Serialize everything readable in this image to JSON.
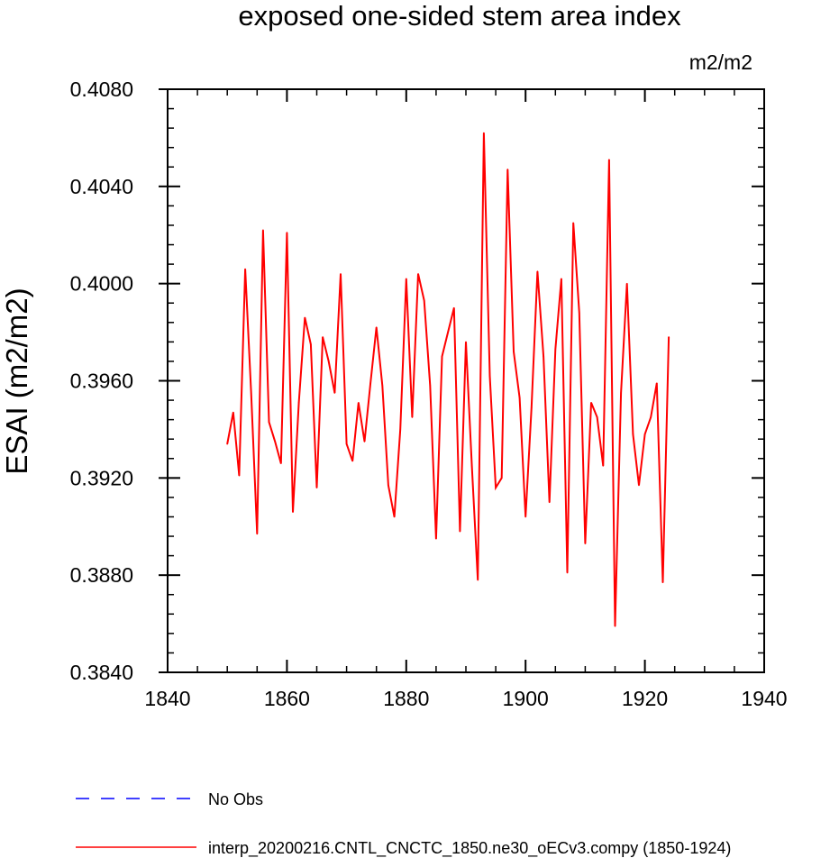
{
  "chart_data": {
    "type": "line",
    "title": "exposed one-sided stem area index",
    "units": "m2/m2",
    "ylabel": "ESAI  (m2/m2)",
    "xlabel": "",
    "xlim": [
      1840,
      1940
    ],
    "ylim": [
      0.384,
      0.408
    ],
    "x_ticks": [
      1840,
      1860,
      1880,
      1900,
      1920,
      1940
    ],
    "x_tick_labels": [
      "1840",
      "1860",
      "1880",
      "1900",
      "1920",
      "1940"
    ],
    "y_ticks": [
      0.384,
      0.388,
      0.392,
      0.396,
      0.4,
      0.404,
      0.408
    ],
    "y_tick_labels": [
      "0.3840",
      "0.3880",
      "0.3920",
      "0.3960",
      "0.4000",
      "0.4040",
      "0.4080"
    ],
    "grid": false,
    "legend_position": "bottom",
    "series": [
      {
        "name": "interp_20200216.CNTL_CNCTC_1850.ne30_oECv3.compy (1850-1924)",
        "color": "#ff0000",
        "style": "solid",
        "x": [
          1850,
          1851,
          1852,
          1853,
          1854,
          1855,
          1856,
          1857,
          1858,
          1859,
          1860,
          1861,
          1862,
          1863,
          1864,
          1865,
          1866,
          1867,
          1868,
          1869,
          1870,
          1871,
          1872,
          1873,
          1874,
          1875,
          1876,
          1877,
          1878,
          1879,
          1880,
          1881,
          1882,
          1883,
          1884,
          1885,
          1886,
          1887,
          1888,
          1889,
          1890,
          1891,
          1892,
          1893,
          1894,
          1895,
          1896,
          1897,
          1898,
          1899,
          1900,
          1901,
          1902,
          1903,
          1904,
          1905,
          1906,
          1907,
          1908,
          1909,
          1910,
          1911,
          1912,
          1913,
          1914,
          1915,
          1916,
          1917,
          1918,
          1919,
          1920,
          1921,
          1922,
          1923,
          1924
        ],
        "values": [
          0.3934,
          0.3947,
          0.3921,
          0.4006,
          0.3955,
          0.3897,
          0.4022,
          0.3943,
          0.3935,
          0.3926,
          0.4021,
          0.3906,
          0.3951,
          0.3986,
          0.3975,
          0.3916,
          0.3978,
          0.3968,
          0.3955,
          0.4004,
          0.3934,
          0.3927,
          0.3951,
          0.3935,
          0.3959,
          0.3982,
          0.3958,
          0.3917,
          0.3904,
          0.394,
          0.4002,
          0.3945,
          0.4004,
          0.3993,
          0.3958,
          0.3895,
          0.397,
          0.398,
          0.399,
          0.3898,
          0.3976,
          0.3925,
          0.3878,
          0.4062,
          0.3962,
          0.3916,
          0.392,
          0.4047,
          0.3972,
          0.3953,
          0.3904,
          0.3949,
          0.4005,
          0.397,
          0.391,
          0.3973,
          0.4002,
          0.3881,
          0.4025,
          0.3988,
          0.3893,
          0.3951,
          0.3945,
          0.3925,
          0.4051,
          0.3859,
          0.3955,
          0.4,
          0.3938,
          0.3917,
          0.3938,
          0.3945,
          0.3959,
          0.3877,
          0.3978
        ]
      }
    ],
    "legend": [
      {
        "label": "No Obs",
        "color": "#0000ff",
        "style": "dashed"
      },
      {
        "label": "interp_20200216.CNTL_CNCTC_1850.ne30_oECv3.compy (1850-1924)",
        "color": "#ff0000",
        "style": "solid"
      }
    ]
  }
}
